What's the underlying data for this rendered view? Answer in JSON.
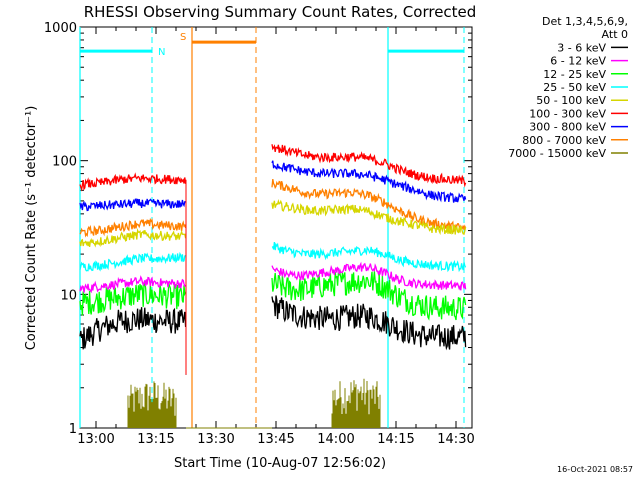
{
  "chart_data": {
    "type": "line",
    "title": "RHESSI Observing Summary Count Rates, Corrected",
    "xlabel": "Start Time (10-Aug-07 12:56:02)",
    "ylabel": "Corrected Count Rate (s⁻¹ detector⁻¹)",
    "y_scale": "log",
    "ylim": [
      1,
      1000
    ],
    "xlim_minutes": [
      0,
      98
    ],
    "x_ticks": [
      {
        "label": "13:00",
        "min": 4
      },
      {
        "label": "13:15",
        "min": 19
      },
      {
        "label": "13:30",
        "min": 34
      },
      {
        "label": "13:45",
        "min": 49
      },
      {
        "label": "14:00",
        "min": 64
      },
      {
        "label": "14:15",
        "min": 79
      },
      {
        "label": "14:30",
        "min": 94
      }
    ],
    "y_ticks": [
      {
        "label": "1",
        "value": 1
      },
      {
        "label": "10",
        "value": 10
      },
      {
        "label": "100",
        "value": 100
      },
      {
        "label": "1000",
        "value": 1000
      }
    ],
    "legend_header": [
      "Det 1,3,4,5,6,9,",
      "Att 0"
    ],
    "legend_position": "right",
    "series": [
      {
        "name": "3 - 6 keV",
        "color": "#000000",
        "x": [
          0,
          5,
          10,
          15,
          20,
          26.5,
          48,
          52,
          56,
          60,
          64,
          68,
          72,
          76,
          80,
          84,
          88,
          96.5
        ],
        "values": [
          4.5,
          5.5,
          6.3,
          6.5,
          6.3,
          6.2,
          8.5,
          7.3,
          6.8,
          6.6,
          6.6,
          6.8,
          6.9,
          6.3,
          5.5,
          5.0,
          4.8,
          4.8
        ]
      },
      {
        "name": "6 - 12 keV",
        "color": "#ff00ff",
        "x": [
          0,
          5,
          10,
          15,
          20,
          26.5,
          48,
          52,
          56,
          60,
          64,
          68,
          72,
          76,
          80,
          84,
          88,
          96.5
        ],
        "values": [
          11,
          11.5,
          12,
          12.5,
          12.2,
          12,
          15.5,
          14,
          13.8,
          14.5,
          15,
          15.8,
          16,
          14.5,
          12.8,
          12,
          11.8,
          11.5
        ]
      },
      {
        "name": "12 - 25 keV",
        "color": "#00ff00",
        "x": [
          0,
          5,
          10,
          15,
          20,
          26.5,
          48,
          52,
          56,
          60,
          64,
          68,
          72,
          76,
          80,
          84,
          88,
          96.5
        ],
        "values": [
          8.5,
          9,
          9.5,
          10,
          9.8,
          9.5,
          12,
          11,
          10.8,
          11.5,
          12,
          12.5,
          12.8,
          11.5,
          9.5,
          8.5,
          8,
          7.8
        ]
      },
      {
        "name": "25 - 50 keV",
        "color": "#00ffff",
        "x": [
          0,
          5,
          10,
          15,
          20,
          26.5,
          48,
          52,
          56,
          60,
          64,
          68,
          72,
          76,
          80,
          84,
          88,
          96.5
        ],
        "values": [
          16,
          16.5,
          17.5,
          18.5,
          18.5,
          19,
          23,
          21,
          20,
          20,
          20.5,
          21,
          21.5,
          20,
          18,
          17,
          16.5,
          16
        ]
      },
      {
        "name": "50 - 100 keV",
        "color": "#d6d600",
        "x": [
          0,
          5,
          10,
          15,
          20,
          26.5,
          48,
          52,
          56,
          60,
          64,
          68,
          72,
          76,
          80,
          84,
          88,
          96.5
        ],
        "values": [
          24,
          25,
          26.5,
          28,
          27.5,
          27,
          47,
          45,
          43,
          42,
          43,
          43.5,
          42,
          38,
          35,
          33,
          31,
          30
        ]
      },
      {
        "name": "100 - 300 keV",
        "color": "#ff0000",
        "x": [
          0,
          5,
          10,
          15,
          20,
          26.5,
          48,
          52,
          56,
          60,
          64,
          68,
          72,
          76,
          80,
          84,
          88,
          96.5
        ],
        "values": [
          66,
          68,
          72,
          74,
          73,
          72,
          128,
          118,
          110,
          106,
          106,
          107,
          104,
          96,
          85,
          78,
          74,
          70
        ]
      },
      {
        "name": "300 - 800 keV",
        "color": "#0000ff",
        "x": [
          0,
          5,
          10,
          15,
          20,
          26.5,
          48,
          52,
          56,
          60,
          64,
          68,
          72,
          76,
          80,
          84,
          88,
          96.5
        ],
        "values": [
          45,
          46,
          47,
          48,
          47.5,
          47,
          95,
          88,
          83,
          80,
          80,
          80,
          78,
          72,
          65,
          60,
          55,
          51
        ]
      },
      {
        "name": "800 - 7000 keV",
        "color": "#ff8000",
        "x": [
          0,
          5,
          10,
          15,
          20,
          26.5,
          48,
          52,
          56,
          60,
          64,
          68,
          72,
          76,
          80,
          84,
          88,
          96.5
        ],
        "values": [
          29,
          30,
          32,
          34,
          33,
          32,
          68,
          63,
          58,
          56,
          57,
          58,
          55,
          49,
          42,
          37,
          34,
          31
        ]
      },
      {
        "name": "7000 - 15000 keV",
        "color": "#808000",
        "x": [
          12,
          15,
          18,
          21,
          24,
          63,
          66,
          69,
          72,
          75
        ],
        "values": [
          1.6,
          1.7,
          1.8,
          1.7,
          1.6,
          1.7,
          1.8,
          1.9,
          1.8,
          1.7
        ]
      }
    ],
    "annotations": [
      {
        "label": "N",
        "color": "#00ffff",
        "start_min": 0,
        "end_min": 18,
        "level": 660
      },
      {
        "label": "S",
        "color": "#ff8000",
        "start_min": 28,
        "end_min": 44,
        "level": 770
      },
      {
        "label": "",
        "color": "#00ffff",
        "start_min": 77,
        "end_min": 96,
        "level": 660
      }
    ],
    "grid": false
  },
  "footer": {
    "timestamp": "16-Oct-2021 08:57"
  }
}
